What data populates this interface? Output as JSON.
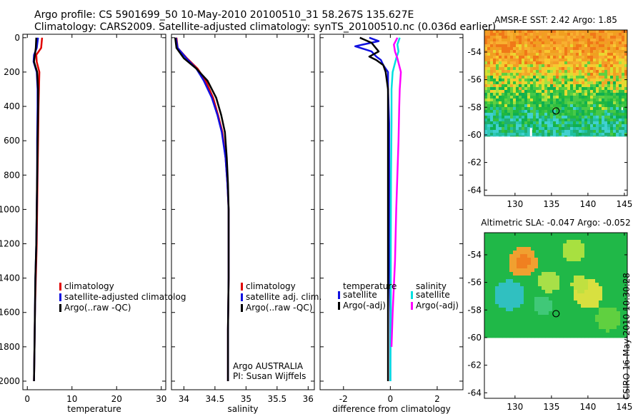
{
  "title": {
    "line1": "Argo profile: CS 5901699_50 10-May-2010 20100510_31 58.267S 135.627E",
    "line2": "Climatology: CARS2009. Satellite-adjusted climatology: synTS_20100510.nc (0.036d earlier)"
  },
  "credit": "CSIRO 16-May-2010 10:30:28",
  "colors": {
    "climatology": "#e00000",
    "satellite": "#1010e0",
    "argo": "#000000",
    "satellite_salinity": "#00e0e0",
    "argo_salinity": "#ff00ff"
  },
  "chart_data": [
    {
      "type": "line",
      "id": "temperature",
      "xlabel": "temperature",
      "ylabel": "",
      "xlim": [
        -1,
        31
      ],
      "ylim": [
        2050,
        -20
      ],
      "xticks": [
        0,
        10,
        20,
        30
      ],
      "yticks": [
        0,
        200,
        400,
        600,
        800,
        1000,
        1200,
        1400,
        1600,
        1800,
        2000
      ],
      "legend": {
        "placement": "lower-left",
        "entries": [
          "climatology",
          "satellite-adjusted climatolog",
          "Argo(..raw -QC)"
        ]
      },
      "series": [
        {
          "name": "climatology",
          "color": "#e00000",
          "x": [
            3.3,
            3.1,
            2.0,
            2.1,
            2.7,
            2.6,
            2.5,
            2.4,
            2.3,
            2.2,
            2.1,
            1.9,
            1.7,
            1.6,
            1.5
          ],
          "y": [
            0,
            60,
            100,
            140,
            200,
            300,
            400,
            600,
            800,
            1000,
            1200,
            1400,
            1600,
            1800,
            2000
          ]
        },
        {
          "name": "satellite-adjusted climatolog",
          "color": "#1010e0",
          "x": [
            2.4,
            2.1,
            1.5,
            1.4,
            2.1,
            2.3,
            2.3,
            2.2,
            2.2,
            2.1,
            2.0,
            1.8,
            1.7,
            1.6,
            1.5
          ],
          "y": [
            0,
            60,
            100,
            140,
            200,
            300,
            400,
            600,
            800,
            1000,
            1200,
            1400,
            1600,
            1800,
            2000
          ]
        },
        {
          "name": "Argo(..raw -QC)",
          "color": "#000000",
          "x": [
            2.0,
            1.9,
            1.7,
            1.5,
            2.2,
            2.4,
            2.4,
            2.3,
            2.2,
            2.1,
            2.0,
            1.8,
            1.7,
            1.6,
            1.5
          ],
          "y": [
            0,
            60,
            100,
            140,
            200,
            300,
            400,
            600,
            800,
            1000,
            1200,
            1400,
            1600,
            1800,
            2000
          ]
        }
      ]
    },
    {
      "type": "line",
      "id": "salinity",
      "xlabel": "salinity",
      "ylabel": "",
      "xlim": [
        33.8,
        36.1
      ],
      "ylim": [
        2050,
        -20
      ],
      "xticks": [
        34,
        34.5,
        35,
        35.5,
        36
      ],
      "yticks": [
        0,
        200,
        400,
        600,
        800,
        1000,
        1200,
        1400,
        1600,
        1800,
        2000
      ],
      "legend": {
        "placement": "lower-right",
        "entries": [
          "climatology",
          "satellite adj. clim.",
          "Argo(..raw -QC)"
        ]
      },
      "annotations": [
        "Argo AUSTRALIA",
        "PI: Susan Wijffels"
      ],
      "series": [
        {
          "name": "climatology",
          "color": "#e00000",
          "x": [
            33.88,
            33.9,
            34.05,
            34.22,
            34.35,
            34.47,
            34.55,
            34.62,
            34.67,
            34.7,
            34.72,
            34.72,
            34.72,
            34.71,
            34.71
          ],
          "y": [
            0,
            60,
            120,
            180,
            250,
            350,
            450,
            550,
            700,
            850,
            1000,
            1200,
            1400,
            1700,
            2000
          ]
        },
        {
          "name": "satellite adj. clim.",
          "color": "#1010e0",
          "x": [
            33.87,
            33.9,
            34.04,
            34.2,
            34.32,
            34.45,
            34.54,
            34.61,
            34.67,
            34.7,
            34.72,
            34.72,
            34.72,
            34.71,
            34.71
          ],
          "y": [
            0,
            60,
            120,
            180,
            250,
            350,
            450,
            550,
            700,
            850,
            1000,
            1200,
            1400,
            1700,
            2000
          ]
        },
        {
          "name": "Argo(..raw -QC)",
          "color": "#000000",
          "x": [
            33.86,
            33.88,
            34.0,
            34.2,
            34.38,
            34.52,
            34.6,
            34.66,
            34.69,
            34.71,
            34.72,
            34.72,
            34.72,
            34.71,
            34.71
          ],
          "y": [
            0,
            60,
            120,
            180,
            250,
            350,
            450,
            550,
            700,
            850,
            1000,
            1200,
            1400,
            1700,
            2000
          ]
        }
      ]
    },
    {
      "type": "line",
      "id": "difference",
      "xlabel": "difference from climatology",
      "ylabel": "",
      "xlim": [
        -3,
        3.1
      ],
      "ylim": [
        2050,
        -20
      ],
      "xticks": [
        -2,
        0,
        2
      ],
      "yticks": [
        0,
        200,
        400,
        600,
        800,
        1000,
        1200,
        1400,
        1600,
        1800,
        2000
      ],
      "legend": {
        "placement": "lower",
        "headers": [
          "temperature",
          "salinity"
        ],
        "entries": [
          "satellite",
          "Argo(-adj)",
          "satellite",
          "Argo(-adj)"
        ]
      },
      "series": [
        {
          "name": "temperature satellite",
          "color": "#1010e0",
          "x": [
            -0.9,
            -0.5,
            -1.5,
            -0.8,
            -0.6,
            -0.4,
            -0.3,
            -0.1,
            -0.1,
            -0.05,
            -0.05,
            -0.05,
            0,
            0
          ],
          "y": [
            0,
            20,
            50,
            80,
            110,
            130,
            160,
            200,
            300,
            500,
            800,
            1200,
            1600,
            2000
          ]
        },
        {
          "name": "temperature Argo(-adj)",
          "color": "#000000",
          "x": [
            -1.3,
            -0.8,
            -0.5,
            -0.9,
            -0.6,
            -0.3,
            -0.2,
            -0.1,
            -0.1,
            -0.1,
            -0.1,
            -0.1,
            -0.1,
            -0.1
          ],
          "y": [
            0,
            30,
            80,
            110,
            130,
            160,
            200,
            300,
            500,
            800,
            1200,
            1600,
            1900,
            2000
          ]
        },
        {
          "name": "salinity satellite",
          "color": "#00e0e0",
          "x": [
            0.4,
            0.3,
            0.35,
            0.25,
            0.1,
            0.05,
            0.05,
            0.03,
            0.02,
            0.02,
            0,
            0
          ],
          "y": [
            0,
            40,
            80,
            120,
            200,
            300,
            500,
            800,
            1200,
            1600,
            1900,
            2000
          ]
        },
        {
          "name": "salinity Argo(-adj)",
          "color": "#ff00ff",
          "x": [
            0.3,
            0.15,
            0.2,
            0.3,
            0.45,
            0.4,
            0.38,
            0.35,
            0.3,
            0.25,
            0.2,
            0.1,
            0.05
          ],
          "y": [
            0,
            40,
            80,
            120,
            200,
            300,
            400,
            600,
            800,
            1000,
            1300,
            1600,
            1800
          ]
        }
      ]
    },
    {
      "type": "heatmap",
      "id": "sst_map",
      "title": "AMSR-E SST: 2.42 Argo: 1.85",
      "xlim": [
        125.8,
        145.4
      ],
      "ylim": [
        -64.4,
        -52.4
      ],
      "xticks": [
        130,
        135,
        140,
        145
      ],
      "yticks": [
        -54,
        -56,
        -58,
        -60,
        -62,
        -64
      ],
      "data_extent_lat": [
        -60.1,
        -52.4
      ],
      "marker": {
        "lon": 135.627,
        "lat": -58.267
      }
    },
    {
      "type": "heatmap",
      "id": "sla_map",
      "title": "Altimetric SLA: -0.047 Argo: -0.052",
      "xlim": [
        125.8,
        145.4
      ],
      "ylim": [
        -64.4,
        -52.4
      ],
      "xticks": [
        130,
        135,
        140,
        145
      ],
      "yticks": [
        -54,
        -56,
        -58,
        -60,
        -62,
        -64
      ],
      "data_extent_lat": [
        -60.0,
        -52.4
      ],
      "marker": {
        "lon": 135.627,
        "lat": -58.267
      }
    }
  ]
}
